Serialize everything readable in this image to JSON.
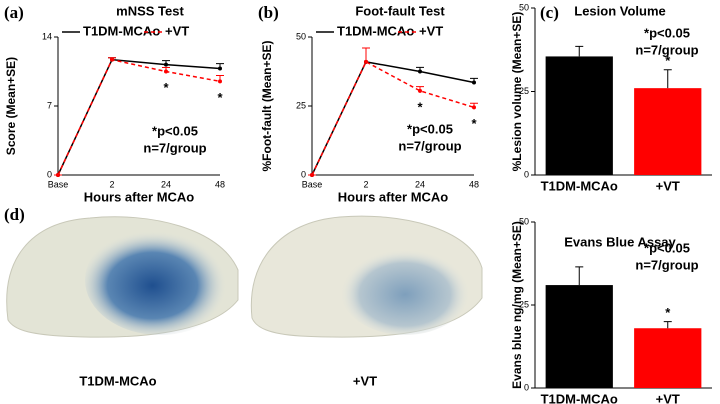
{
  "chart_data": [
    {
      "type": "line",
      "panel_label": "(a)",
      "title": "mNSS Test",
      "y_label": "Score (Mean+SE)",
      "x_label": "Hours after MCAo",
      "categories": [
        "Base",
        "2",
        "24",
        "48"
      ],
      "ylim": [
        0,
        14
      ],
      "yticks": [
        0,
        7,
        14
      ],
      "series": [
        {
          "name": "T1DM-MCAo",
          "color": "#000000",
          "line_style": "solid",
          "values": [
            0,
            11.7,
            11.2,
            10.8
          ],
          "errors": [
            0,
            0.2,
            0.4,
            0.5
          ]
        },
        {
          "name": "+VT",
          "color": "#ff0000",
          "line_style": "dashed",
          "values": [
            0,
            11.7,
            10.5,
            9.5
          ],
          "errors": [
            0,
            0.2,
            0.4,
            0.6
          ],
          "significance": [
            null,
            null,
            "*",
            "*"
          ]
        }
      ],
      "annotations": [
        "*p<0.05",
        "n=7/group"
      ]
    },
    {
      "type": "line",
      "panel_label": "(b)",
      "title": "Foot-fault Test",
      "y_label": "%Foot-fault (Mean+SE)",
      "x_label": "Hours after MCAo",
      "categories": [
        "Base",
        "2",
        "24",
        "48"
      ],
      "ylim": [
        0,
        50
      ],
      "yticks": [
        0,
        25,
        50
      ],
      "series": [
        {
          "name": "T1DM-MCAo",
          "color": "#000000",
          "line_style": "solid",
          "values": [
            0,
            41,
            37.5,
            33.5
          ],
          "errors": [
            0,
            5,
            1.5,
            1.5
          ]
        },
        {
          "name": "+VT",
          "color": "#ff0000",
          "line_style": "dashed",
          "values": [
            0,
            41,
            30.5,
            24.5
          ],
          "errors": [
            0,
            5,
            1.5,
            1.5
          ],
          "significance": [
            null,
            null,
            "*",
            "*"
          ]
        }
      ],
      "annotations": [
        "*p<0.05",
        "n=7/group"
      ]
    },
    {
      "type": "bar",
      "panel_label": "(c)",
      "title": "Lesion Volume",
      "y_label": "%Lesion volume (Mean+SE)",
      "categories": [
        "T1DM-MCAo",
        "+VT"
      ],
      "values": [
        35.5,
        26
      ],
      "errors": [
        3,
        5.5
      ],
      "colors": [
        "#000000",
        "#ff0000"
      ],
      "significance": [
        null,
        "*"
      ],
      "ylim": [
        0,
        50
      ],
      "yticks": [
        0,
        25,
        50
      ],
      "annotations": [
        "*p<0.05",
        "n=7/group"
      ]
    },
    {
      "type": "bar",
      "title": "Evans Blue Assay",
      "y_label": "Evans blue ng/mg (Mean+SE)",
      "categories": [
        "T1DM-MCAo",
        "+VT"
      ],
      "values": [
        31,
        18
      ],
      "errors": [
        5.5,
        2
      ],
      "colors": [
        "#000000",
        "#ff0000"
      ],
      "significance": [
        null,
        "*"
      ],
      "ylim": [
        0,
        50
      ],
      "yticks": [
        0,
        25,
        50
      ],
      "annotations": [
        "*p<0.05",
        "n=7/group"
      ]
    }
  ],
  "photo_panel": {
    "label": "(d)",
    "captions": [
      "T1DM-MCAo",
      "+VT"
    ]
  }
}
